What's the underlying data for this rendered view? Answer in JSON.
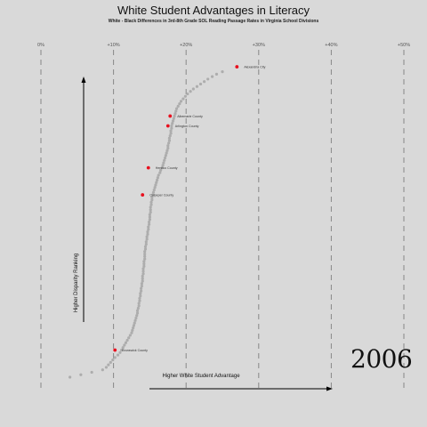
{
  "chart_data": {
    "type": "scatter",
    "title": "White Student Advantages in Literacy",
    "subtitle": "White - Black Differences in 3rd-8th Grade SOL Reading Passage Rates in Virginia School Divisions",
    "xlabel": "Higher White Student Advantage",
    "ylabel": "Higher Disparity Ranking",
    "year": "2006",
    "x_ticks": [
      {
        "value": 0,
        "label": "0%"
      },
      {
        "value": 10,
        "label": "+10%"
      },
      {
        "value": 20,
        "label": "+20%"
      },
      {
        "value": 30,
        "label": "+30%"
      },
      {
        "value": 40,
        "label": "+40%"
      },
      {
        "value": 50,
        "label": "+50%"
      }
    ],
    "xlim": [
      0,
      50
    ],
    "ylim": [
      1,
      131
    ],
    "grid": "vertical-dashed",
    "colors": {
      "point": "#adadad",
      "highlight": "#e8101e",
      "grid": "#888888",
      "arrow": "#000000"
    },
    "series": [
      {
        "values": [
          [
            4.0,
            1
          ],
          [
            5.5,
            2
          ],
          [
            7.0,
            3
          ],
          [
            8.5,
            4
          ],
          [
            9.0,
            5
          ],
          [
            9.3,
            6
          ],
          [
            9.6,
            7
          ],
          [
            9.9,
            8
          ],
          [
            10.2,
            9
          ],
          [
            10.6,
            10
          ],
          [
            10.9,
            11
          ],
          [
            11.1,
            12
          ],
          [
            11.3,
            13
          ],
          [
            11.5,
            14
          ],
          [
            11.7,
            15
          ],
          [
            11.9,
            16
          ],
          [
            12.1,
            17
          ],
          [
            12.3,
            18
          ],
          [
            12.5,
            19
          ],
          [
            12.6,
            20
          ],
          [
            12.7,
            21
          ],
          [
            12.8,
            22
          ],
          [
            12.9,
            23
          ],
          [
            13.0,
            24
          ],
          [
            13.1,
            25
          ],
          [
            13.2,
            26
          ],
          [
            13.3,
            27
          ],
          [
            13.3,
            28
          ],
          [
            13.4,
            29
          ],
          [
            13.5,
            30
          ],
          [
            13.5,
            31
          ],
          [
            13.6,
            32
          ],
          [
            13.6,
            33
          ],
          [
            13.7,
            34
          ],
          [
            13.7,
            35
          ],
          [
            13.8,
            36
          ],
          [
            13.8,
            37
          ],
          [
            13.9,
            38
          ],
          [
            13.9,
            39
          ],
          [
            14.0,
            40
          ],
          [
            14.0,
            41
          ],
          [
            14.0,
            42
          ],
          [
            14.1,
            43
          ],
          [
            14.1,
            44
          ],
          [
            14.1,
            45
          ],
          [
            14.2,
            46
          ],
          [
            14.2,
            47
          ],
          [
            14.2,
            48
          ],
          [
            14.3,
            49
          ],
          [
            14.3,
            50
          ],
          [
            14.3,
            51
          ],
          [
            14.3,
            52
          ],
          [
            14.4,
            53
          ],
          [
            14.4,
            54
          ],
          [
            14.5,
            55
          ],
          [
            14.5,
            56
          ],
          [
            14.6,
            57
          ],
          [
            14.6,
            58
          ],
          [
            14.7,
            59
          ],
          [
            14.7,
            60
          ],
          [
            14.8,
            61
          ],
          [
            14.8,
            62
          ],
          [
            14.9,
            63
          ],
          [
            14.9,
            64
          ],
          [
            15.0,
            65
          ],
          [
            15.0,
            66
          ],
          [
            15.0,
            67
          ],
          [
            15.1,
            68
          ],
          [
            15.1,
            69
          ],
          [
            15.1,
            70
          ],
          [
            15.2,
            71
          ],
          [
            15.2,
            72
          ],
          [
            15.3,
            73
          ],
          [
            15.3,
            74
          ],
          [
            15.4,
            75
          ],
          [
            15.5,
            76
          ],
          [
            15.6,
            77
          ],
          [
            15.7,
            78
          ],
          [
            15.8,
            79
          ],
          [
            15.9,
            80
          ],
          [
            16.0,
            81
          ],
          [
            16.1,
            82
          ],
          [
            16.2,
            83
          ],
          [
            16.4,
            84
          ],
          [
            16.5,
            85
          ],
          [
            16.7,
            86
          ],
          [
            16.8,
            87
          ],
          [
            16.9,
            88
          ],
          [
            17.0,
            89
          ],
          [
            17.1,
            90
          ],
          [
            17.2,
            91
          ],
          [
            17.3,
            92
          ],
          [
            17.4,
            93
          ],
          [
            17.5,
            94
          ],
          [
            17.5,
            95
          ],
          [
            17.6,
            96
          ],
          [
            17.7,
            97
          ],
          [
            17.7,
            98
          ],
          [
            17.8,
            99
          ],
          [
            17.9,
            100
          ],
          [
            17.9,
            101
          ],
          [
            18.0,
            102
          ],
          [
            18.0,
            103
          ],
          [
            18.1,
            104
          ],
          [
            18.2,
            105
          ],
          [
            18.3,
            106
          ],
          [
            18.4,
            107
          ],
          [
            18.5,
            108
          ],
          [
            18.6,
            109
          ],
          [
            18.7,
            110
          ],
          [
            18.9,
            111
          ],
          [
            19.1,
            112
          ],
          [
            19.3,
            113
          ],
          [
            19.6,
            114
          ],
          [
            19.9,
            115
          ],
          [
            20.2,
            116
          ],
          [
            20.6,
            117
          ],
          [
            21.0,
            118
          ],
          [
            21.5,
            119
          ],
          [
            22.0,
            120
          ],
          [
            22.5,
            121
          ],
          [
            23.0,
            122
          ],
          [
            23.6,
            123
          ],
          [
            24.2,
            124
          ],
          [
            25.0,
            125
          ]
        ]
      }
    ],
    "highlights": [
      {
        "label": "Alexandria City",
        "x": 27.0,
        "y": 127
      },
      {
        "label": "Albemarle County",
        "x": 17.8,
        "y": 107
      },
      {
        "label": "Arlington County",
        "x": 17.5,
        "y": 103
      },
      {
        "label": "Henrico County",
        "x": 14.8,
        "y": 86
      },
      {
        "label": "Culpeper County",
        "x": 14.0,
        "y": 75
      },
      {
        "label": "Brunswick County",
        "x": 10.2,
        "y": 12
      }
    ]
  }
}
